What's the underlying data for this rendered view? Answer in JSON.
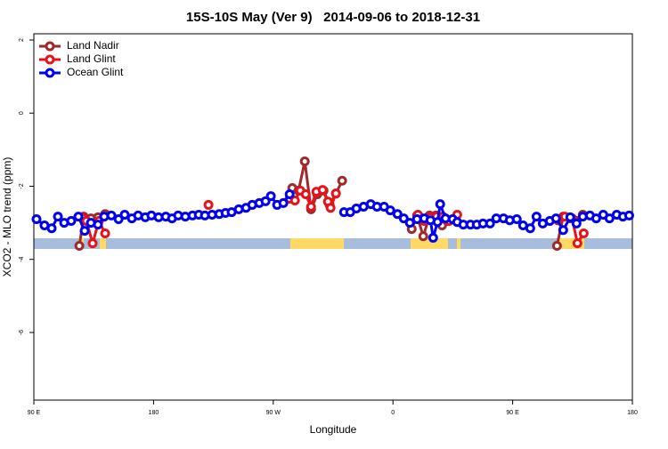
{
  "chart_data": {
    "type": "line",
    "title": "15S-10S May (Ver 9)   2014-09-06 to 2018-12-31",
    "xlabel": "Longitude",
    "ylabel": "XCO2 - MLO trend (ppm)",
    "xlim": [
      90,
      540
    ],
    "ylim": [
      -7.85,
      2.17
    ],
    "xticks": [
      {
        "value": 90,
        "label": "90 E"
      },
      180,
      {
        "value": 270,
        "label": "90 W"
      },
      0,
      {
        "value": 450,
        "label": "90 E"
      },
      {
        "value": 540,
        "label": "180"
      }
    ],
    "yticks": [
      2,
      0,
      -2,
      -4,
      -6
    ],
    "legend": "top-left",
    "series": [
      {
        "name": "Land Nadir",
        "color": "#9e2a2b",
        "x": [
          124.2,
          127.5,
          132.9,
          138.2,
          143.6,
          null,
          284.3,
          289.0,
          293.7,
          298.4,
          303.1,
          307.8,
          312.4,
          317.1,
          321.8,
          null,
          374.1,
          378.1,
          382.8,
          387.5,
          392.2,
          396.9,
          400.9,
          null,
          483.3,
          488.0,
          493.3,
          498.0,
          502.7
        ],
        "values": [
          -3.63,
          -2.83,
          -2.88,
          -2.85,
          -2.76,
          null,
          -2.05,
          -2.12,
          -1.32,
          -2.63,
          -2.22,
          -2.12,
          -2.51,
          -2.2,
          -1.85,
          null,
          -3.17,
          -2.8,
          -3.37,
          -2.8,
          -2.8,
          -3.07,
          -2.95,
          null,
          -3.63,
          -2.83,
          -2.88,
          -2.95,
          -2.78
        ]
      },
      {
        "name": "Land Glint",
        "color": "#e8121a",
        "x": [
          126.2,
          129.5,
          134.2,
          138.9,
          143.6,
          null,
          221.3,
          null,
          282.3,
          286.3,
          290.3,
          294.4,
          298.4,
          302.4,
          307.1,
          311.1,
          313.1,
          317.1,
          null,
          378.8,
          383.5,
          388.2,
          392.8,
          397.5,
          402.2,
          408.3,
          null,
          484.0,
          489.3,
          494.7,
          498.7,
          503.4
        ],
        "values": [
          -2.85,
          -2.95,
          -3.56,
          -2.95,
          -3.29,
          null,
          -2.51,
          null,
          -2.34,
          -2.39,
          -2.12,
          -2.22,
          -2.56,
          -2.15,
          -2.1,
          -2.42,
          -2.59,
          -2.2,
          null,
          -2.78,
          -2.95,
          -2.85,
          -2.83,
          -2.83,
          -2.95,
          -2.78,
          null,
          -2.93,
          -2.83,
          -2.88,
          -3.56,
          -3.29
        ]
      },
      {
        "name": "Ocean Glint",
        "color": "#0000ee",
        "x": [
          92.0,
          98.0,
          103.4,
          108.1,
          112.8,
          118.1,
          123.5,
          128.2,
          132.9,
          138.2,
          142.9,
          148.3,
          153.7,
          158.3,
          163.7,
          168.4,
          173.8,
          178.4,
          183.8,
          189.2,
          193.9,
          198.5,
          203.9,
          209.3,
          214.0,
          218.6,
          224.0,
          229.4,
          234.1,
          238.7,
          244.1,
          249.5,
          254.2,
          259.5,
          264.2,
          268.2,
          272.9,
          277.6,
          282.3,
          null,
          323.2,
          327.9,
          332.5,
          337.9,
          343.3,
          348.0,
          353.3,
          358.0,
          363.4,
          368.1,
          372.7,
          378.1,
          383.5,
          388.2,
          390.2,
          393.5,
          395.5,
          399.5,
          404.9,
          408.3,
          412.9,
          418.3,
          423.0,
          427.7,
          433.0,
          437.7,
          443.1,
          447.8,
          453.1,
          457.8,
          463.2,
          467.9,
          472.6,
          477.9,
          482.6,
          488.0,
          493.3,
          498.0,
          502.7,
          508.1,
          512.8,
          518.1,
          522.8,
          528.2,
          532.9,
          537.6
        ],
        "values": [
          -2.9,
          -3.07,
          -3.15,
          -2.83,
          -3.0,
          -2.95,
          -2.83,
          -3.22,
          -3.0,
          -3.05,
          -2.83,
          -2.8,
          -2.9,
          -2.78,
          -2.88,
          -2.8,
          -2.85,
          -2.8,
          -2.85,
          -2.83,
          -2.88,
          -2.8,
          -2.83,
          -2.8,
          -2.78,
          -2.8,
          -2.78,
          -2.76,
          -2.73,
          -2.71,
          -2.63,
          -2.59,
          -2.51,
          -2.46,
          -2.41,
          -2.27,
          -2.51,
          -2.46,
          -2.22,
          null,
          -2.71,
          -2.71,
          -2.61,
          -2.56,
          -2.49,
          -2.56,
          -2.56,
          -2.66,
          -2.76,
          -2.88,
          -3.0,
          -2.9,
          -2.88,
          -2.93,
          -3.41,
          -2.98,
          -2.49,
          -2.88,
          -2.9,
          -2.98,
          -3.05,
          -3.05,
          -3.05,
          -3.02,
          -3.02,
          -2.88,
          -2.88,
          -2.93,
          -2.9,
          -3.07,
          -3.15,
          -2.83,
          -3.02,
          -2.95,
          -2.88,
          -3.2,
          -2.85,
          -3.02,
          -2.83,
          -2.8,
          -2.88,
          -2.78,
          -2.88,
          -2.78,
          -2.83,
          -2.8
        ]
      }
    ]
  }
}
